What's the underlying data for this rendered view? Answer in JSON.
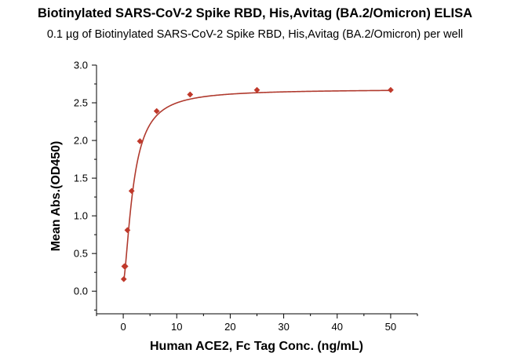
{
  "chart_data": {
    "type": "scatter",
    "title": "Biotinylated SARS-CoV-2 Spike RBD, His,Avitag (BA.2/Omicron)  ELISA",
    "subtitle": "0.1 µg of Biotinylated SARS-CoV-2 Spike RBD, His,Avitag (BA.2/Omicron)  per well",
    "xlabel": "Human ACE2, Fc Tag Conc. (ng/mL)",
    "ylabel": "Mean Abs.(OD450)",
    "xlim": [
      -5,
      55
    ],
    "ylim": [
      -0.3,
      3.0
    ],
    "xticks": [
      0,
      10,
      20,
      30,
      40,
      50
    ],
    "yticks": [
      0.0,
      0.5,
      1.0,
      1.5,
      2.0,
      2.5,
      3.0
    ],
    "xtick_labels": [
      "0",
      "10",
      "20",
      "30",
      "40",
      "50"
    ],
    "ytick_labels": [
      "0.0",
      "0.5",
      "1.0",
      "1.5",
      "2.0",
      "2.5",
      "3.0"
    ],
    "series": [
      {
        "marker": "diamond",
        "color": "#c0392b",
        "x": [
          0.098,
          0.195,
          0.39,
          0.78,
          1.56,
          3.125,
          6.25,
          12.5,
          25,
          50
        ],
        "y": [
          0.16,
          0.33,
          0.33,
          0.81,
          1.33,
          1.99,
          2.39,
          2.61,
          2.67,
          2.67
        ]
      }
    ],
    "fit_curve": {
      "color": "#b03a2e",
      "top": 2.68,
      "bottom": 0.12,
      "ec50": 1.9,
      "hill": 1.55
    }
  }
}
